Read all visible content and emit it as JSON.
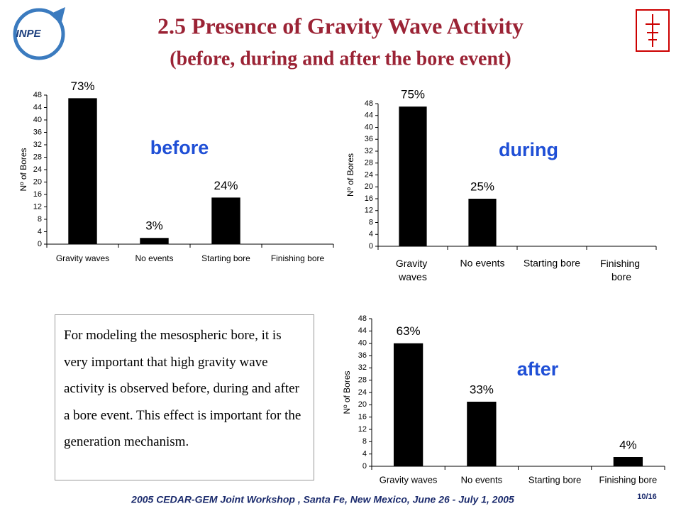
{
  "header": {
    "title": "2.5 Presence of Gravity Wave Activity",
    "subtitle": "(before, during and after the bore event)",
    "logo_text": "INPE"
  },
  "text_box": "For modeling the mesospheric bore, it is very important that high gravity wave activity is observed before, during and after a bore event. This effect is important for the generation mechanism.",
  "footer": {
    "text": "2005 CEDAR-GEM Joint Workshop , Santa Fe, New Mexico, June 26 - July 1, 2005",
    "page": "10/16"
  },
  "chart_data": [
    {
      "type": "bar",
      "label": "before",
      "ylabel": "Nº of Bores",
      "categories": [
        "Gravity waves",
        "No events",
        "Starting bore",
        "Finishing bore"
      ],
      "values": [
        47,
        2,
        15,
        0
      ],
      "percent_labels": [
        "73%",
        "3%",
        "24%",
        null
      ],
      "color": "#000000",
      "ylim": [
        0,
        48
      ],
      "yticks": [
        0,
        4,
        8,
        12,
        16,
        20,
        24,
        28,
        32,
        36,
        40,
        44,
        48
      ]
    },
    {
      "type": "bar",
      "label": "during",
      "ylabel": "Nº of Bores",
      "categories": [
        "Gravity waves",
        "No events",
        "Starting bore",
        "Finishing bore"
      ],
      "values": [
        47,
        16,
        0,
        0
      ],
      "percent_labels": [
        "75%",
        "25%",
        null,
        null
      ],
      "color": "#000000",
      "ylim": [
        0,
        48
      ],
      "yticks": [
        0,
        4,
        8,
        12,
        16,
        20,
        24,
        28,
        32,
        36,
        40,
        44,
        48
      ]
    },
    {
      "type": "bar",
      "label": "after",
      "ylabel": "Nº of Bores",
      "categories": [
        "Gravity waves",
        "No events",
        "Starting bore",
        "Finishing bore"
      ],
      "values": [
        40,
        21,
        0,
        3
      ],
      "percent_labels": [
        "63%",
        "33%",
        null,
        "4%"
      ],
      "color": "#000000",
      "ylim": [
        0,
        48
      ],
      "yticks": [
        0,
        4,
        8,
        12,
        16,
        20,
        24,
        28,
        32,
        36,
        40,
        44,
        48
      ]
    }
  ]
}
